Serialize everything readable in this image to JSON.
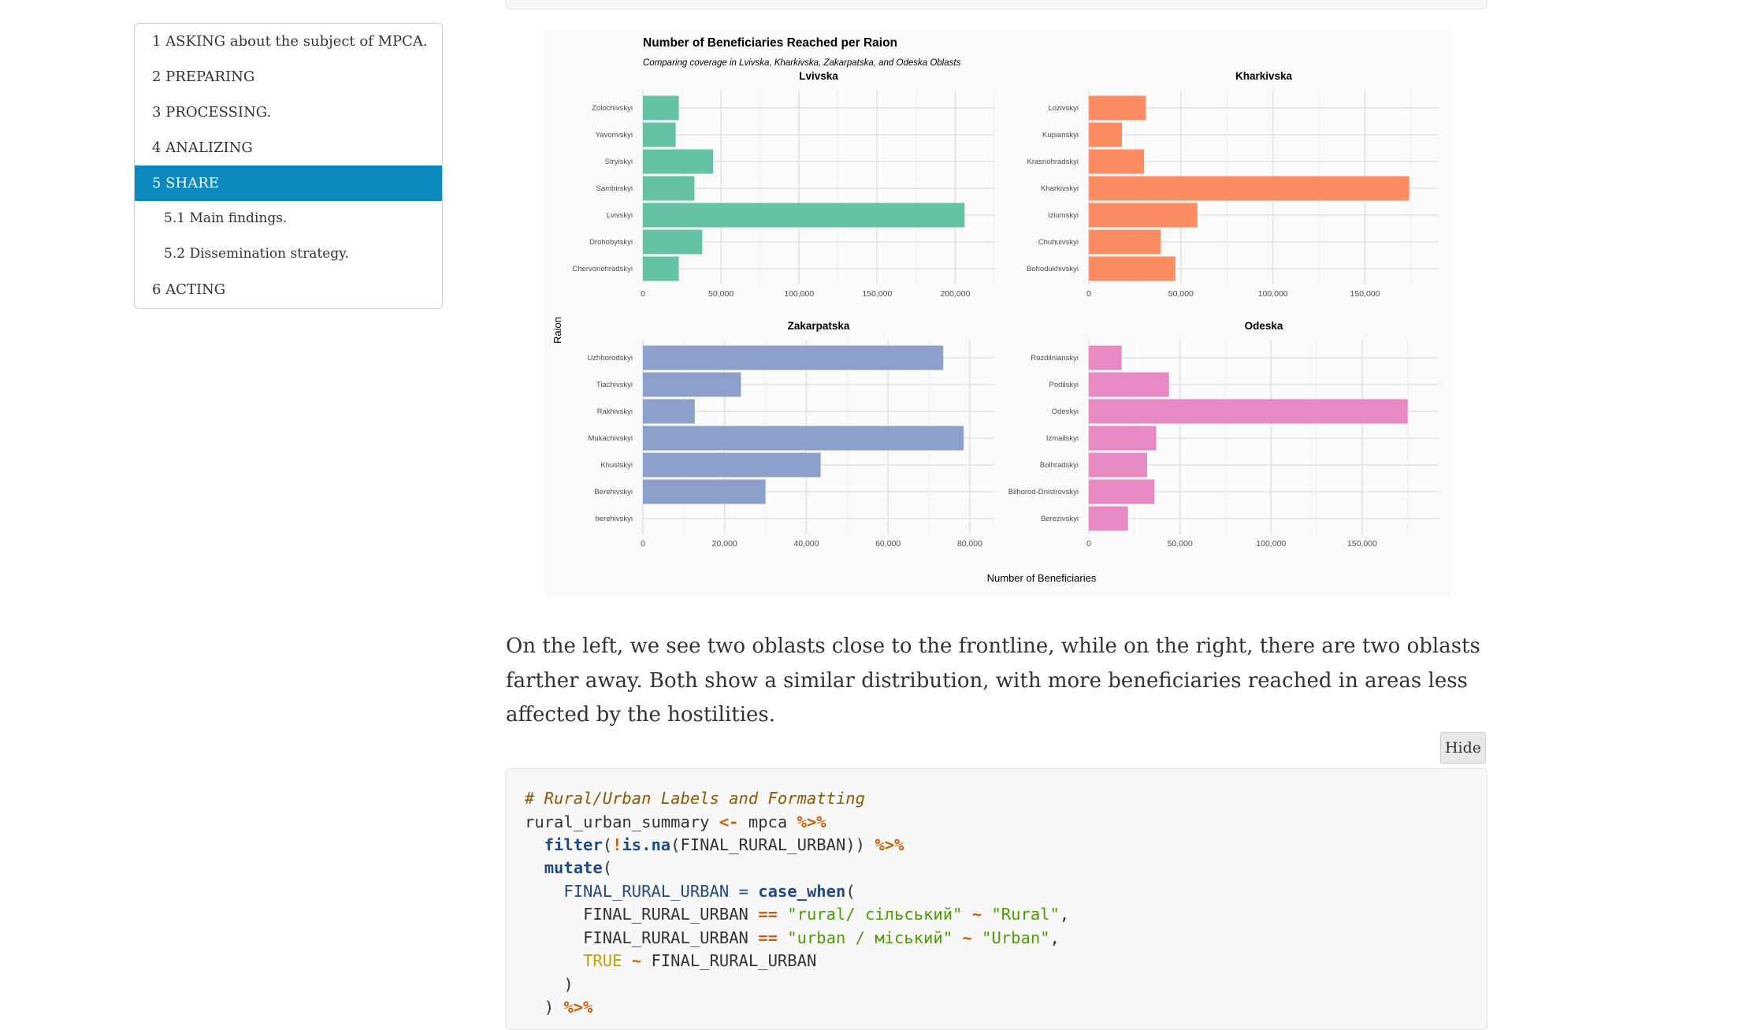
{
  "toc": {
    "items": [
      {
        "label": "1 ASKING about the subject of MPCA.",
        "level": 1,
        "active": false
      },
      {
        "label": "2 PREPARING",
        "level": 1,
        "active": false
      },
      {
        "label": "3 PROCESSING.",
        "level": 1,
        "active": false
      },
      {
        "label": "4 ANALIZING",
        "level": 1,
        "active": false
      },
      {
        "label": "5 SHARE",
        "level": 1,
        "active": true
      },
      {
        "label": "5.1 Main findings.",
        "level": 2,
        "active": false
      },
      {
        "label": "5.2 Dissemination strategy.",
        "level": 2,
        "active": false
      },
      {
        "label": "6 ACTING",
        "level": 1,
        "active": false
      }
    ]
  },
  "chart_data": {
    "type": "bar",
    "orientation": "horizontal",
    "title": "Number of Beneficiaries Reached per Raion",
    "subtitle": "Comparing coverage in Lvivska, Kharkivska, Zakarpatska, and Odeska Oblasts",
    "xlabel": "Number of Beneficiaries",
    "ylabel": "Raion",
    "grid": true,
    "legend": "none",
    "panels": [
      {
        "name": "Lvivska",
        "color": "#66c2a5",
        "xlim": [
          0,
          225000
        ],
        "ticks": [
          0,
          50000,
          100000,
          150000,
          200000
        ],
        "tick_labels": [
          "0",
          "50,000",
          "100,000",
          "150,000",
          "200,000"
        ],
        "categories": [
          "Zolochivskyi",
          "Yavorivskyi",
          "Stryiskyi",
          "Sambirskyi",
          "Lvivskyi",
          "Drohobytskyi",
          "Chervonohradskyi"
        ],
        "values": [
          23000,
          21000,
          45000,
          33000,
          206000,
          38000,
          23000
        ]
      },
      {
        "name": "Kharkivska",
        "color": "#fc8d62",
        "xlim": [
          0,
          190000
        ],
        "ticks": [
          0,
          50000,
          100000,
          150000
        ],
        "tick_labels": [
          "0",
          "50,000",
          "100,000",
          "150,000"
        ],
        "categories": [
          "Lozivskyi",
          "Kupianskyi",
          "Krasnohradskyi",
          "Kharkivskyi",
          "Iziumskyi",
          "Chuhuivskyi",
          "Bohodukhivskyi"
        ],
        "values": [
          31000,
          18000,
          30000,
          174000,
          59000,
          39000,
          47000
        ]
      },
      {
        "name": "Zakarpatska",
        "color": "#8da0cb",
        "xlim": [
          0,
          86000
        ],
        "ticks": [
          0,
          20000,
          40000,
          60000,
          80000
        ],
        "tick_labels": [
          "0",
          "20,000",
          "40,000",
          "60,000",
          "80,000"
        ],
        "categories": [
          "Uzhhorodskyi",
          "Tiachivskyi",
          "Rakhivskyi",
          "Mukachivskyi",
          "Khustskyi",
          "Berehivskyi",
          "berehivskyi"
        ],
        "values": [
          73500,
          24000,
          12700,
          78500,
          43500,
          30000,
          0
        ]
      },
      {
        "name": "Odeska",
        "color": "#e78ac3",
        "xlim": [
          0,
          192000
        ],
        "ticks": [
          0,
          50000,
          100000,
          150000
        ],
        "tick_labels": [
          "0",
          "50,000",
          "100,000",
          "150,000"
        ],
        "categories": [
          "Rozdilnianskyi",
          "Podilskyi",
          "Odeskyi",
          "Izmailskyi",
          "Bolhradskyi",
          "Bilhorod-Dnistrovskyi",
          "Berezivskyi"
        ],
        "values": [
          18000,
          44000,
          175000,
          37000,
          32000,
          36000,
          21500
        ]
      }
    ]
  },
  "paragraph": "On the left, we see two oblasts close to the frontline, while on the right, there are two oblasts farther away. Both show a similar distribution, with more beneficiaries reached in areas less affected by the hostilities.",
  "code": {
    "hide_label": "Hide",
    "comment": "# Rural/Urban Labels and Formatting",
    "summary_var": "rural_urban_summary",
    "assign": "<-",
    "source": "mpca",
    "pipe": "%>%",
    "filter_fn": "filter",
    "paren_open": "(",
    "bang": "!",
    "isna_fn": "is.na",
    "column": "FINAL_RURAL_URBAN",
    "close_double": "))",
    "mutate_fn": "mutate",
    "equals": "=",
    "casewhen_fn": "case_when",
    "eqeq": "==",
    "rural_value": "\"rural/ сільський\"",
    "urban_value": "\"urban / міський\"",
    "tilde": "~",
    "rural_label": "\"Rural\"",
    "urban_label": "\"Urban\"",
    "comma": ",",
    "true_kw": "TRUE",
    "close_paren": ")"
  }
}
